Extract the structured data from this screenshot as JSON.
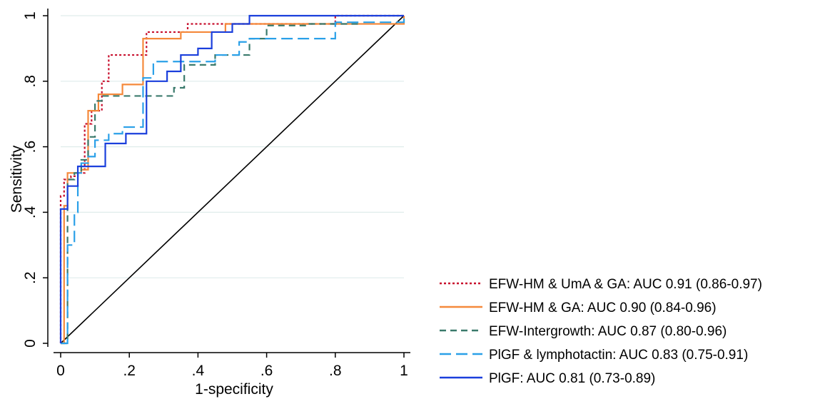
{
  "chart_data": {
    "type": "line",
    "title": "",
    "xlabel": "1-specificity",
    "ylabel": "Sensitivity",
    "xlim": [
      0,
      1
    ],
    "ylim": [
      0,
      1
    ],
    "xticks": [
      0,
      0.2,
      0.4,
      0.6,
      0.8,
      1
    ],
    "xtick_labels": [
      "0",
      ".2",
      ".4",
      ".6",
      ".8",
      "1"
    ],
    "yticks": [
      0,
      0.2,
      0.4,
      0.6,
      0.8,
      1
    ],
    "ytick_labels": [
      "0",
      ".2",
      ".4",
      ".6",
      ".8",
      "1"
    ],
    "grid": "horizontal",
    "legend_position": "bottom-right",
    "reference_line": {
      "x": [
        0,
        1
      ],
      "y": [
        0,
        1
      ],
      "color": "#000000"
    },
    "series": [
      {
        "name": "EFW-HM & UmA & GA: AUC 0.91 (0.86-0.97)",
        "color": "#c8102e",
        "dash": "dotted",
        "x": [
          0,
          0,
          0.01,
          0.03,
          0.05,
          0.07,
          0.09,
          0.12,
          0.14,
          0.16,
          0.22,
          0.25,
          0.35,
          0.37,
          0.8,
          0.8,
          1.0
        ],
        "y": [
          0,
          0.45,
          0.5,
          0.51,
          0.52,
          0.67,
          0.71,
          0.8,
          0.88,
          0.88,
          0.88,
          0.95,
          0.95,
          0.975,
          0.975,
          1.0,
          1.0
        ]
      },
      {
        "name": "EFW-HM & GA: AUC 0.90 (0.84-0.96)",
        "color": "#f5893b",
        "dash": "solid",
        "x": [
          0,
          0.01,
          0.02,
          0.06,
          0.08,
          0.11,
          0.18,
          0.2,
          0.24,
          0.26,
          0.35,
          0.35,
          0.48,
          0.48,
          0.55,
          0.8,
          1.0
        ],
        "y": [
          0,
          0.42,
          0.52,
          0.53,
          0.71,
          0.76,
          0.79,
          0.79,
          0.93,
          0.93,
          0.93,
          0.95,
          0.95,
          0.975,
          0.975,
          0.975,
          1.0
        ]
      },
      {
        "name": "EFW-Intergrowth: AUC 0.87 (0.80-0.96)",
        "color": "#3a7a6c",
        "dash": "dashed",
        "x": [
          0,
          0.02,
          0.04,
          0.06,
          0.08,
          0.1,
          0.12,
          0.24,
          0.33,
          0.36,
          0.45,
          0.55,
          0.6,
          0.72,
          0.87
        ],
        "y": [
          0,
          0.5,
          0.52,
          0.56,
          0.63,
          0.74,
          0.755,
          0.755,
          0.78,
          0.85,
          0.88,
          0.93,
          0.97,
          0.975,
          0.98
        ]
      },
      {
        "name": "PlGF & lymphotactin: AUC 0.83 (0.75-0.91)",
        "color": "#2aa0e8",
        "dash": "longdash",
        "x": [
          0,
          0.02,
          0.04,
          0.05,
          0.06,
          0.08,
          0.1,
          0.14,
          0.18,
          0.24,
          0.27,
          0.36,
          0.45,
          0.52,
          0.55,
          0.68,
          0.8,
          1.0
        ],
        "y": [
          0,
          0.3,
          0.4,
          0.52,
          0.55,
          0.57,
          0.62,
          0.64,
          0.66,
          0.81,
          0.86,
          0.86,
          0.88,
          0.92,
          0.93,
          0.93,
          0.98,
          1.0
        ]
      },
      {
        "name": "PlGF: AUC 0.81 (0.73-0.89)",
        "color": "#1a3fdc",
        "dash": "solid",
        "x": [
          0,
          0,
          0.02,
          0.05,
          0.11,
          0.13,
          0.16,
          0.19,
          0.22,
          0.25,
          0.27,
          0.31,
          0.35,
          0.4,
          0.44,
          0.44,
          0.5,
          0.55,
          0.8,
          1.0
        ],
        "y": [
          0,
          0.41,
          0.48,
          0.54,
          0.54,
          0.61,
          0.61,
          0.64,
          0.64,
          0.8,
          0.8,
          0.83,
          0.88,
          0.9,
          0.9,
          0.95,
          0.975,
          1.0,
          1.0,
          1.0
        ]
      }
    ]
  }
}
